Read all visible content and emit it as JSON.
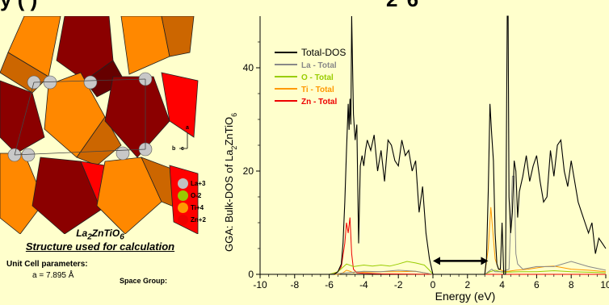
{
  "header": {
    "title_fragment": "y       (    )",
    "title_right": "2    6"
  },
  "structure": {
    "legend": [
      {
        "label": "La+3",
        "color": "#c0c0c0"
      },
      {
        "label": "O-2",
        "color": "#99cc00"
      },
      {
        "label": "Ti+4",
        "color": "#ff9900"
      },
      {
        "label": "Zn+2",
        "color": "#ee0000"
      }
    ],
    "axes_labels": {
      "a": "a",
      "b": "b",
      "c": "c"
    },
    "name_main": "La",
    "name_sub1": "2",
    "name_mid": "ZnTiO",
    "name_sub2": "6",
    "caption": "Structure used for calculation",
    "unit_cell_label": "Unit Cell parameters:",
    "a_param": "a = 7.895 Å",
    "space_group_label": "Space Group:"
  },
  "chart_data": {
    "type": "line",
    "xlabel": "Energy (eV)",
    "ylabel_main": "GGA: Bulk-DOS of La",
    "ylabel_sub1": "2",
    "ylabel_mid": "ZnTiO",
    "ylabel_sub2": "6",
    "xlim": [
      -10,
      10
    ],
    "ylim": [
      0,
      50
    ],
    "xticks": [
      "-10",
      "-8",
      "-6",
      "-4",
      "-2",
      "0",
      "2",
      "4",
      "6",
      "8",
      "10"
    ],
    "yticks": [
      "0",
      "20",
      "40"
    ],
    "arrow_x": [
      0,
      3.2
    ],
    "series": [
      {
        "name": "Total-DOS",
        "color": "#000000",
        "x": [
          -10,
          -5.7,
          -5.5,
          -5.3,
          -5.2,
          -5.1,
          -5.0,
          -4.9,
          -4.85,
          -4.8,
          -4.75,
          -4.7,
          -4.6,
          -4.5,
          -4.4,
          -4.3,
          -4.2,
          -4.1,
          -4.0,
          -3.9,
          -3.8,
          -3.6,
          -3.4,
          -3.2,
          -3.0,
          -2.8,
          -2.6,
          -2.4,
          -2.2,
          -2.0,
          -1.8,
          -1.6,
          -1.4,
          -1.2,
          -1.0,
          -0.8,
          -0.6,
          -0.4,
          -0.2,
          0,
          0.5,
          1,
          2,
          3.0,
          3.1,
          3.2,
          3.3,
          3.4,
          3.5,
          3.6,
          3.7,
          3.8,
          3.9,
          4.0,
          4.1,
          4.2,
          4.3,
          4.35,
          4.4,
          4.5,
          4.6,
          4.7,
          4.8,
          4.9,
          5.0,
          5.2,
          5.4,
          5.6,
          5.8,
          6.0,
          6.2,
          6.4,
          6.6,
          6.8,
          7.0,
          7.2,
          7.4,
          7.6,
          7.8,
          8.0,
          8.2,
          8.4,
          8.6,
          8.8,
          9.0,
          9.2,
          9.4,
          9.6,
          9.8,
          10
        ],
        "y": [
          0,
          0,
          0.5,
          2,
          6,
          14,
          24,
          33,
          28,
          34,
          29,
          50,
          31,
          26,
          29,
          6,
          21,
          23,
          21,
          24,
          26,
          24,
          27,
          20,
          24,
          18,
          26,
          25,
          22,
          21,
          26,
          23,
          24,
          20,
          22,
          12,
          17,
          8,
          3,
          0,
          0,
          0,
          0,
          0,
          3,
          16,
          33,
          27,
          22,
          8,
          2,
          1,
          1,
          10,
          0,
          0,
          50,
          50,
          15,
          8,
          12,
          22,
          20,
          11,
          16,
          19,
          23,
          18,
          21,
          23,
          18,
          14,
          15,
          24,
          19,
          25,
          26,
          20,
          17,
          22,
          18,
          14,
          12,
          10,
          8,
          10,
          4,
          7,
          6,
          5
        ]
      },
      {
        "name": "La - Total",
        "color": "#888888",
        "x": [
          -10,
          -6,
          -5,
          -4,
          -3,
          -2,
          -1,
          0,
          3.0,
          3.2,
          3.4,
          3.6,
          4,
          4.4,
          4.6,
          4.7,
          4.8,
          4.9,
          5.2,
          6,
          7,
          8,
          9,
          10
        ],
        "y": [
          0,
          0,
          0.3,
          0.6,
          0.5,
          0.8,
          0.6,
          0,
          0,
          0.5,
          1,
          0.5,
          0.5,
          1,
          19,
          19,
          4,
          2,
          1,
          1.5,
          1.5,
          2.5,
          1.5,
          0.8
        ]
      },
      {
        "name": "O - Total",
        "color": "#99cc00",
        "x": [
          -10,
          -6,
          -5.5,
          -5,
          -4.6,
          -4,
          -3.5,
          -3,
          -2.5,
          -2,
          -1.5,
          -1,
          -0.5,
          -0.2,
          0,
          3,
          3.3,
          3.6,
          4,
          5,
          6,
          7,
          8,
          9,
          10
        ],
        "y": [
          0,
          0,
          0.5,
          2,
          1.5,
          1.8,
          1.6,
          1.8,
          1.6,
          2.0,
          2.5,
          2.2,
          1.8,
          0.8,
          0,
          0,
          0.5,
          0.8,
          0.4,
          0.5,
          0.5,
          0.7,
          0.5,
          0.4,
          0.3
        ]
      },
      {
        "name": "Ti - Total",
        "color": "#ff9900",
        "x": [
          -10,
          -5.5,
          -5.2,
          -5,
          -4.8,
          -4.6,
          -4.4,
          -4,
          -3,
          -2,
          -1,
          0,
          3.0,
          3.2,
          3.35,
          3.45,
          3.6,
          3.8,
          4.2,
          4.8,
          5.5,
          6.5,
          7,
          8,
          9,
          10
        ],
        "y": [
          0,
          0,
          0.3,
          0.8,
          0.6,
          0.3,
          0.5,
          0.4,
          0.5,
          0.5,
          0.6,
          0,
          0,
          5,
          13,
          9,
          3,
          1,
          0.5,
          0.8,
          1.0,
          1.5,
          1.6,
          1.0,
          0.8,
          0.5
        ]
      },
      {
        "name": "Zn - Total",
        "color": "#ee0000",
        "x": [
          -10,
          -5.8,
          -5.5,
          -5.3,
          -5.1,
          -5.0,
          -4.9,
          -4.8,
          -4.7,
          -4.6,
          -4.4,
          -4,
          -3,
          0,
          10
        ],
        "y": [
          0,
          0,
          0.5,
          1.5,
          6,
          10,
          8,
          11,
          4,
          1,
          0.3,
          0.2,
          0.1,
          0,
          0
        ]
      }
    ]
  }
}
